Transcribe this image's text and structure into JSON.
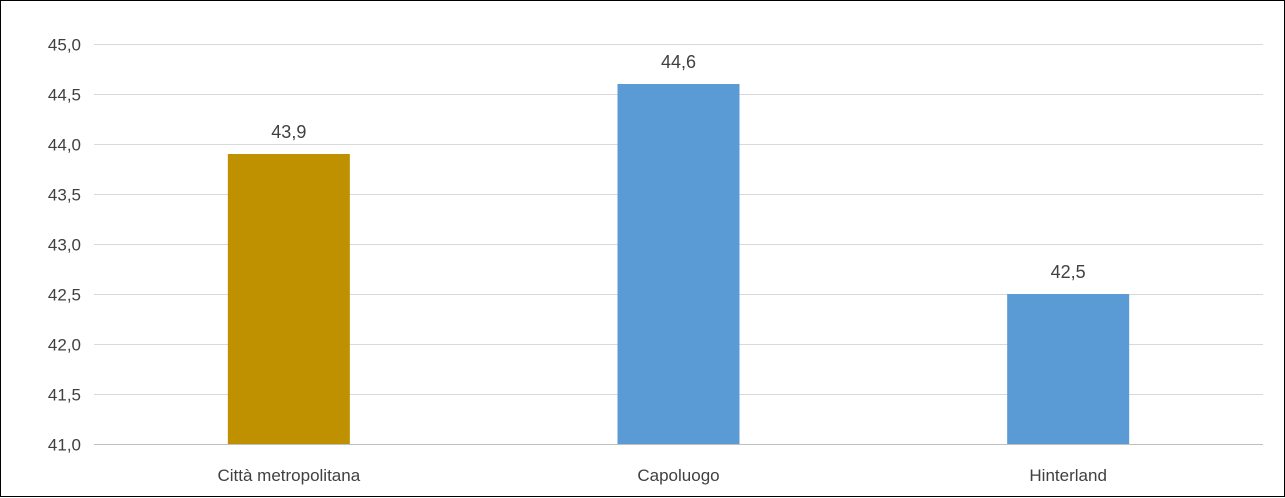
{
  "chart_data": {
    "type": "bar",
    "categories": [
      "Città metropolitana",
      "Capoluogo",
      "Hinterland"
    ],
    "values": [
      43.9,
      44.6,
      42.5
    ],
    "value_labels": [
      "43,9",
      "44,6",
      "42,5"
    ],
    "colors": [
      "#bf9000",
      "#5b9bd5",
      "#5b9bd5"
    ],
    "ylim": [
      41.0,
      45.0
    ],
    "yticks": [
      41.0,
      41.5,
      42.0,
      42.5,
      43.0,
      43.5,
      44.0,
      44.5,
      45.0
    ],
    "ytick_labels": [
      "41,0",
      "41,5",
      "42,0",
      "42,5",
      "43,0",
      "43,5",
      "44,0",
      "44,5",
      "45,0"
    ],
    "grid": true,
    "gridline_color": "#d9d9d9",
    "legend": "none"
  }
}
